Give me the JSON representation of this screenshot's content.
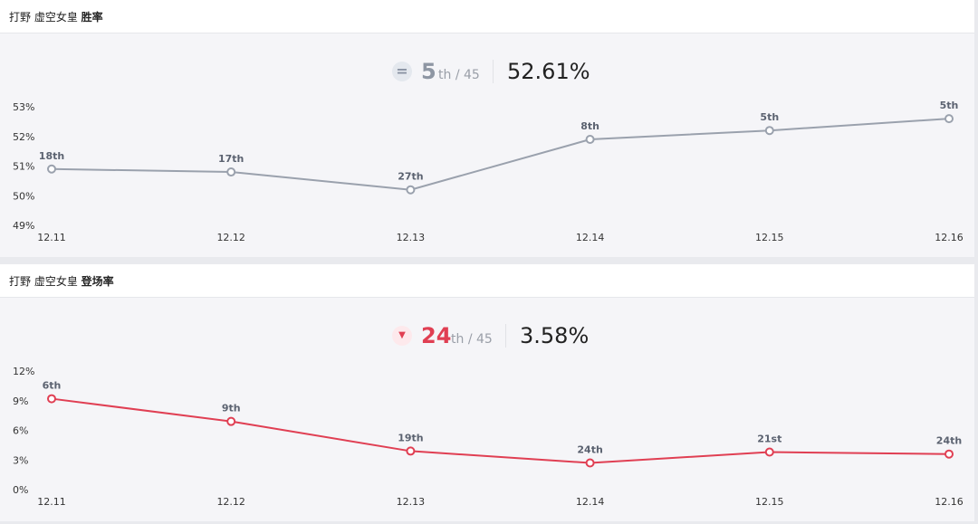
{
  "charts": [
    {
      "header": {
        "prefix": "打野 虚空女皇",
        "metric": "胜率"
      },
      "summary": {
        "trend_icon": "equal-icon",
        "trend_symbol": "=",
        "rank": "5",
        "rank_suffix": "th / 45",
        "value": "52.61%"
      },
      "color": "#9aa1ad",
      "icon_bg": "#e4e8ee",
      "icon_color": "#8a93a3",
      "rank_color": "#8e96a3"
    },
    {
      "header": {
        "prefix": "打野 虚空女皇",
        "metric": "登场率"
      },
      "summary": {
        "trend_icon": "down-arrow-icon",
        "trend_symbol": "▼",
        "rank": "24",
        "rank_suffix": "th / 45",
        "value": "3.58%"
      },
      "color": "#e03f53",
      "icon_bg": "#fde9ec",
      "icon_color": "#e03f53",
      "rank_color": "#e03f53"
    }
  ],
  "chart_data": [
    {
      "type": "line",
      "categories": [
        "12.11",
        "12.12",
        "12.13",
        "12.14",
        "12.15",
        "12.16"
      ],
      "values": [
        50.9,
        50.8,
        50.2,
        51.9,
        52.2,
        52.6
      ],
      "point_labels": [
        "18th",
        "17th",
        "27th",
        "8th",
        "5th",
        "5th"
      ],
      "yticks": [
        "53%",
        "52%",
        "51%",
        "50%",
        "49%"
      ],
      "ytick_values": [
        53,
        52,
        51,
        50,
        49
      ],
      "ylim": [
        49,
        53
      ]
    },
    {
      "type": "line",
      "categories": [
        "12.11",
        "12.12",
        "12.13",
        "12.14",
        "12.15",
        "12.16"
      ],
      "values": [
        9.2,
        6.9,
        3.9,
        2.7,
        3.8,
        3.6
      ],
      "point_labels": [
        "6th",
        "9th",
        "19th",
        "24th",
        "21st",
        "24th"
      ],
      "yticks": [
        "12%",
        "9%",
        "6%",
        "3%",
        "0%"
      ],
      "ytick_values": [
        12,
        9,
        6,
        3,
        0
      ],
      "ylim": [
        0,
        12
      ]
    }
  ]
}
